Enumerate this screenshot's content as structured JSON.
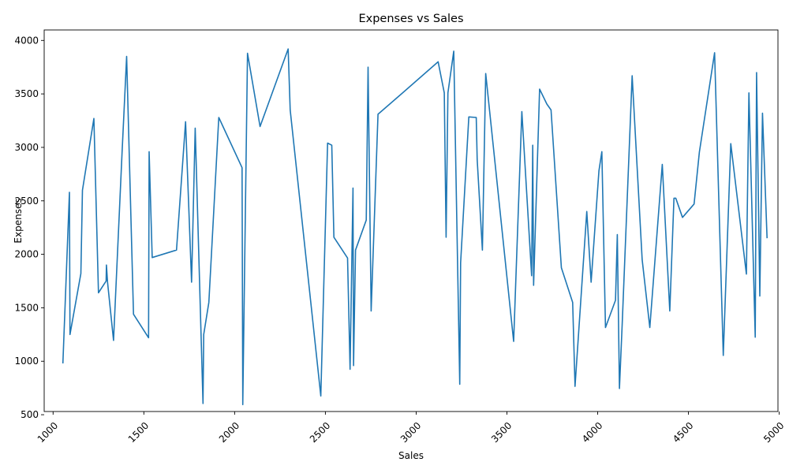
{
  "chart_data": {
    "type": "line",
    "title": "Expenses vs Sales",
    "xlabel": "Sales",
    "ylabel": "Expenses",
    "xlim": [
      951,
      4993
    ],
    "ylim": [
      530,
      4098
    ],
    "xticks": [
      1000,
      1500,
      2000,
      2500,
      3000,
      3500,
      4000,
      4500,
      5000
    ],
    "yticks": [
      500,
      1000,
      1500,
      2000,
      2500,
      3000,
      3500,
      4000
    ],
    "grid": false,
    "legend": "none",
    "line_color": "#1f77b4",
    "series": [
      {
        "x": [
          1054,
          1090,
          1093,
          1153,
          1162,
          1225,
          1250,
          1292,
          1294,
          1300,
          1333,
          1380,
          1405,
          1443,
          1526,
          1529,
          1546,
          1680,
          1730,
          1763,
          1783,
          1826,
          1830,
          1858,
          1913,
          2041,
          2045,
          2071,
          2140,
          2295,
          2306,
          2475,
          2512,
          2535,
          2547,
          2622,
          2636,
          2652,
          2655,
          2666,
          2725,
          2735,
          2752,
          2790,
          2885,
          3121,
          3155,
          3165,
          3175,
          3207,
          3240,
          3245,
          3290,
          3331,
          3336,
          3365,
          3383,
          3537,
          3582,
          3636,
          3642,
          3647,
          3680,
          3720,
          3743,
          3800,
          3862,
          3875,
          3940,
          3964,
          4007,
          4023,
          4043,
          4098,
          4108,
          4120,
          4135,
          4190,
          4245,
          4287,
          4356,
          4397,
          4420,
          4430,
          4467,
          4531,
          4560,
          4644,
          4692,
          4733,
          4819,
          4833,
          4868,
          4875,
          4893,
          4908,
          4933
        ],
        "y": [
          980,
          2580,
          1250,
          1820,
          2600,
          3270,
          1640,
          1750,
          1900,
          1740,
          1195,
          2950,
          3850,
          1440,
          1220,
          2960,
          1970,
          2040,
          3240,
          1740,
          3180,
          605,
          1250,
          1550,
          3280,
          2810,
          595,
          3880,
          3195,
          3920,
          3350,
          675,
          3040,
          3020,
          2160,
          1965,
          925,
          2620,
          960,
          2040,
          2320,
          3750,
          1470,
          3310,
          3450,
          3800,
          3510,
          2160,
          3510,
          3900,
          785,
          1920,
          3285,
          3280,
          2885,
          2040,
          3690,
          1185,
          3335,
          1800,
          3020,
          1710,
          3545,
          3405,
          3350,
          1875,
          1550,
          765,
          2400,
          1740,
          2780,
          2960,
          1315,
          1570,
          2185,
          745,
          1350,
          3670,
          1950,
          1315,
          2840,
          1470,
          2525,
          2525,
          2345,
          2470,
          2955,
          3885,
          1055,
          3035,
          1815,
          3510,
          1225,
          3700,
          1610,
          3320,
          2150
        ]
      }
    ]
  }
}
